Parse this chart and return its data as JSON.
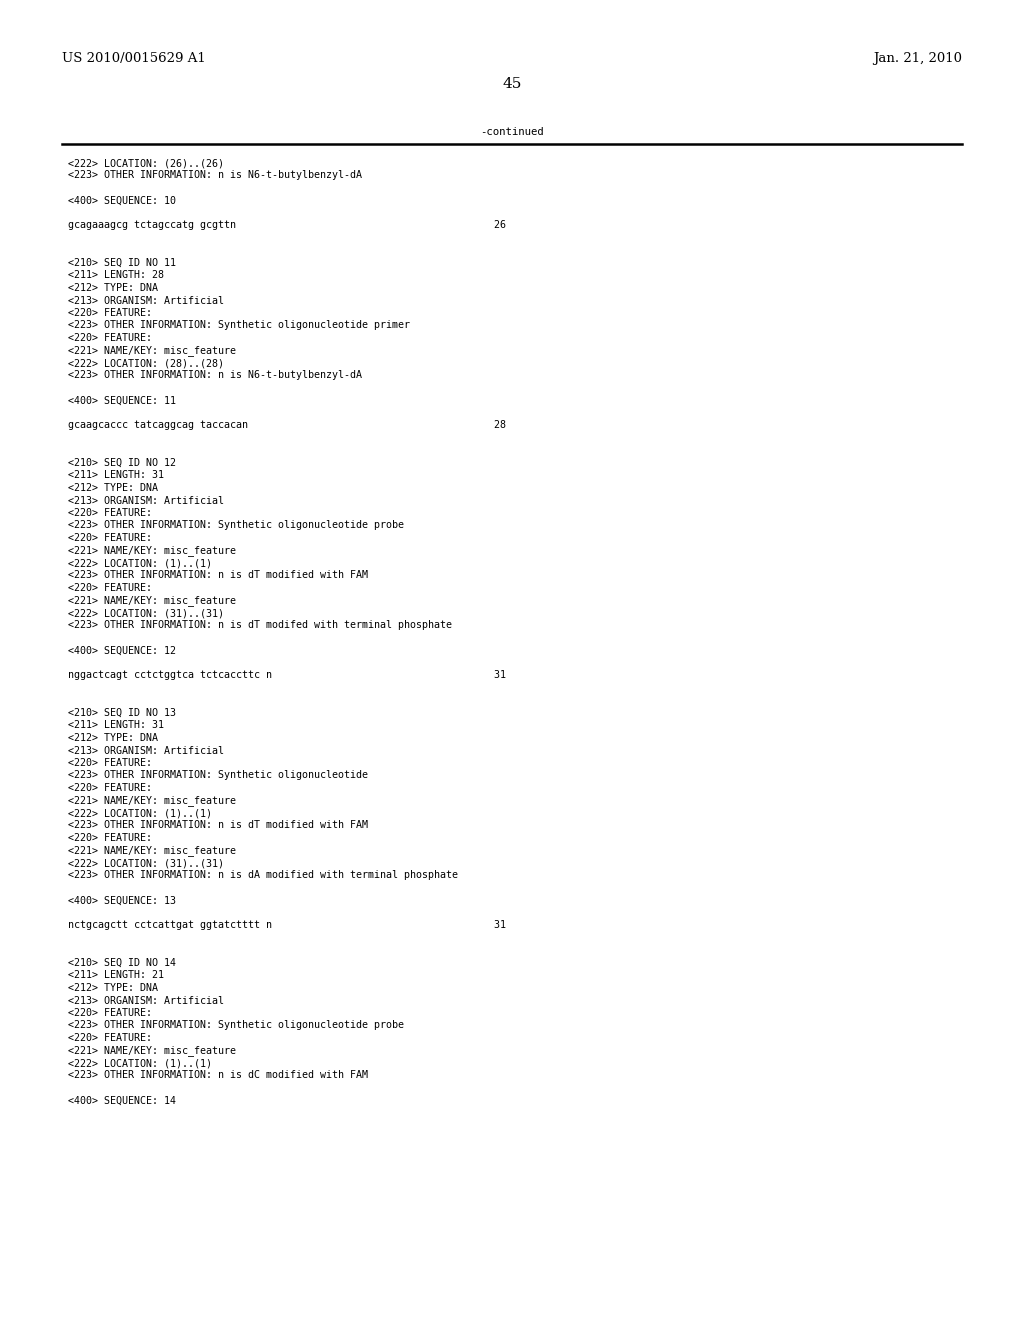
{
  "header_left": "US 2010/0015629 A1",
  "header_right": "Jan. 21, 2010",
  "page_number": "45",
  "continued_label": "-continued",
  "background_color": "#ffffff",
  "text_color": "#000000",
  "mono_font_size": 7.2,
  "header_font_size": 9.5,
  "page_num_font_size": 11,
  "content_lines": [
    "<222> LOCATION: (26)..(26)",
    "<223> OTHER INFORMATION: n is N6-t-butylbenzyl-dA",
    "",
    "<400> SEQUENCE: 10",
    "",
    "gcagaaagcg tctagccatg gcgttn                                           26",
    "",
    "",
    "<210> SEQ ID NO 11",
    "<211> LENGTH: 28",
    "<212> TYPE: DNA",
    "<213> ORGANISM: Artificial",
    "<220> FEATURE:",
    "<223> OTHER INFORMATION: Synthetic oligonucleotide primer",
    "<220> FEATURE:",
    "<221> NAME/KEY: misc_feature",
    "<222> LOCATION: (28)..(28)",
    "<223> OTHER INFORMATION: n is N6-t-butylbenzyl-dA",
    "",
    "<400> SEQUENCE: 11",
    "",
    "gcaagcaccc tatcaggcag taccacan                                         28",
    "",
    "",
    "<210> SEQ ID NO 12",
    "<211> LENGTH: 31",
    "<212> TYPE: DNA",
    "<213> ORGANISM: Artificial",
    "<220> FEATURE:",
    "<223> OTHER INFORMATION: Synthetic oligonucleotide probe",
    "<220> FEATURE:",
    "<221> NAME/KEY: misc_feature",
    "<222> LOCATION: (1)..(1)",
    "<223> OTHER INFORMATION: n is dT modified with FAM",
    "<220> FEATURE:",
    "<221> NAME/KEY: misc_feature",
    "<222> LOCATION: (31)..(31)",
    "<223> OTHER INFORMATION: n is dT modifed with terminal phosphate",
    "",
    "<400> SEQUENCE: 12",
    "",
    "nggactcagt cctctggtca tctcaccttc n                                     31",
    "",
    "",
    "<210> SEQ ID NO 13",
    "<211> LENGTH: 31",
    "<212> TYPE: DNA",
    "<213> ORGANISM: Artificial",
    "<220> FEATURE:",
    "<223> OTHER INFORMATION: Synthetic oligonucleotide",
    "<220> FEATURE:",
    "<221> NAME/KEY: misc_feature",
    "<222> LOCATION: (1)..(1)",
    "<223> OTHER INFORMATION: n is dT modified with FAM",
    "<220> FEATURE:",
    "<221> NAME/KEY: misc_feature",
    "<222> LOCATION: (31)..(31)",
    "<223> OTHER INFORMATION: n is dA modified with terminal phosphate",
    "",
    "<400> SEQUENCE: 13",
    "",
    "nctgcagctt cctcattgat ggtatctttt n                                     31",
    "",
    "",
    "<210> SEQ ID NO 14",
    "<211> LENGTH: 21",
    "<212> TYPE: DNA",
    "<213> ORGANISM: Artificial",
    "<220> FEATURE:",
    "<223> OTHER INFORMATION: Synthetic oligonucleotide probe",
    "<220> FEATURE:",
    "<221> NAME/KEY: misc_feature",
    "<222> LOCATION: (1)..(1)",
    "<223> OTHER INFORMATION: n is dC modified with FAM",
    "",
    "<400> SEQUENCE: 14"
  ]
}
